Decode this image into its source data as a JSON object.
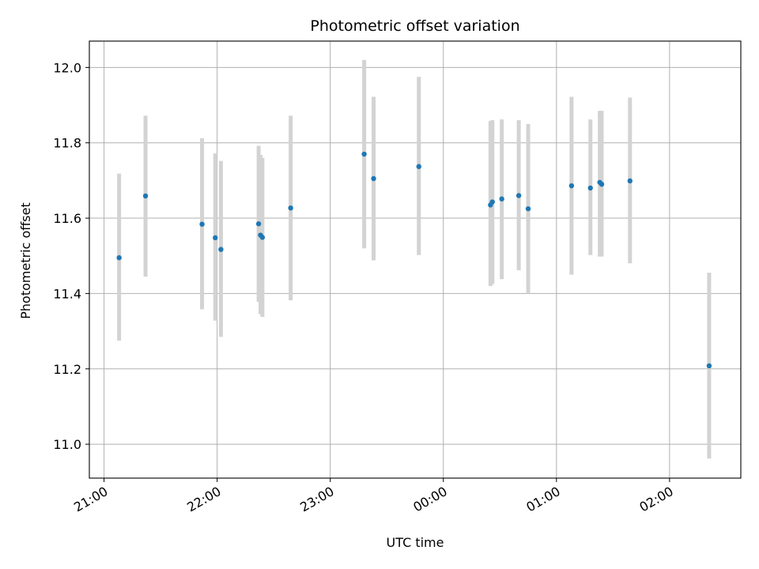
{
  "chart_data": {
    "type": "scatter",
    "title": "Photometric offset variation",
    "xlabel": "UTC time",
    "ylabel": "Photometric offset",
    "x_tick_labels": [
      "21:00",
      "22:00",
      "23:00",
      "00:00",
      "01:00",
      "02:00"
    ],
    "x_tick_hours": [
      0,
      1,
      2,
      3,
      4,
      5
    ],
    "x_tick_dates": [
      "21:00",
      "22:00",
      "23:00",
      "00:00",
      "01:00",
      "02:00"
    ],
    "xlim_hours_after_2100": [
      -0.13,
      5.63
    ],
    "y_ticks": [
      11.0,
      11.2,
      11.4,
      11.6,
      11.8,
      12.0
    ],
    "y_tick_labels": [
      "11.0",
      "11.2",
      "11.4",
      "11.6",
      "11.8",
      "12.0"
    ],
    "ylim": [
      10.91,
      12.07
    ],
    "grid": true,
    "marker_color": "#1f77b4",
    "errorbar_color": "#d3d3d3",
    "points": [
      {
        "time": "21:08",
        "y": 11.495,
        "ylow": 11.275,
        "yhigh": 11.718
      },
      {
        "time": "21:22",
        "y": 11.659,
        "ylow": 11.445,
        "yhigh": 11.872
      },
      {
        "time": "21:52",
        "y": 11.584,
        "ylow": 11.358,
        "yhigh": 11.812
      },
      {
        "time": "21:59",
        "y": 11.548,
        "ylow": 11.328,
        "yhigh": 11.772
      },
      {
        "time": "22:02",
        "y": 11.517,
        "ylow": 11.285,
        "yhigh": 11.752
      },
      {
        "time": "22:22",
        "y": 11.585,
        "ylow": 11.378,
        "yhigh": 11.792
      },
      {
        "time": "22:23",
        "y": 11.555,
        "ylow": 11.345,
        "yhigh": 11.768
      },
      {
        "time": "22:24",
        "y": 11.549,
        "ylow": 11.338,
        "yhigh": 11.76
      },
      {
        "time": "22:39",
        "y": 11.627,
        "ylow": 11.382,
        "yhigh": 11.872
      },
      {
        "time": "23:18",
        "y": 11.77,
        "ylow": 11.52,
        "yhigh": 12.02
      },
      {
        "time": "23:23",
        "y": 11.705,
        "ylow": 11.488,
        "yhigh": 11.922
      },
      {
        "time": "23:47",
        "y": 11.737,
        "ylow": 11.502,
        "yhigh": 11.975
      },
      {
        "time": "00:25",
        "y": 11.635,
        "ylow": 11.42,
        "yhigh": 11.858
      },
      {
        "time": "00:26",
        "y": 11.643,
        "ylow": 11.425,
        "yhigh": 11.86
      },
      {
        "time": "00:31",
        "y": 11.651,
        "ylow": 11.438,
        "yhigh": 11.862
      },
      {
        "time": "00:40",
        "y": 11.66,
        "ylow": 11.462,
        "yhigh": 11.86
      },
      {
        "time": "00:45",
        "y": 11.625,
        "ylow": 11.4,
        "yhigh": 11.85
      },
      {
        "time": "01:08",
        "y": 11.686,
        "ylow": 11.45,
        "yhigh": 11.922
      },
      {
        "time": "01:18",
        "y": 11.68,
        "ylow": 11.502,
        "yhigh": 11.862
      },
      {
        "time": "01:23",
        "y": 11.695,
        "ylow": 11.498,
        "yhigh": 11.885
      },
      {
        "time": "01:24",
        "y": 11.69,
        "ylow": 11.498,
        "yhigh": 11.885
      },
      {
        "time": "01:39",
        "y": 11.699,
        "ylow": 11.48,
        "yhigh": 11.92
      },
      {
        "time": "02:21",
        "y": 11.208,
        "ylow": 10.962,
        "yhigh": 11.455
      }
    ]
  }
}
